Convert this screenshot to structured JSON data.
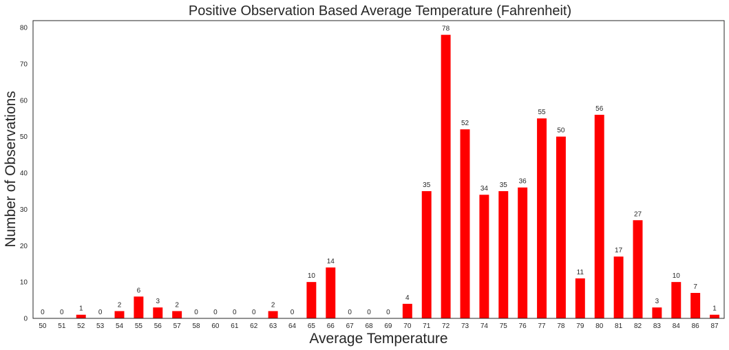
{
  "chart_data": {
    "type": "bar",
    "title": "Positive Observation Based Average Temperature (Fahrenheit)",
    "xlabel": "Average Temperature",
    "ylabel": "Number of Observations",
    "categories": [
      "50",
      "51",
      "52",
      "53",
      "54",
      "55",
      "56",
      "57",
      "58",
      "60",
      "61",
      "62",
      "63",
      "64",
      "65",
      "66",
      "67",
      "68",
      "69",
      "70",
      "71",
      "72",
      "73",
      "74",
      "75",
      "76",
      "77",
      "78",
      "79",
      "80",
      "81",
      "82",
      "83",
      "84",
      "86",
      "87"
    ],
    "values": [
      0,
      0,
      1,
      0,
      2,
      6,
      3,
      2,
      0,
      0,
      0,
      0,
      2,
      0,
      10,
      14,
      0,
      0,
      0,
      4,
      35,
      78,
      52,
      34,
      35,
      36,
      55,
      50,
      11,
      56,
      17,
      27,
      3,
      10,
      7,
      1
    ],
    "data_labels": [
      "0",
      "0",
      "1",
      "0",
      "2",
      "6",
      "3",
      "2",
      "0",
      "0",
      "0",
      "0",
      "2",
      "0",
      "10",
      "14",
      "0",
      "0",
      "0",
      "4",
      "35",
      "78",
      "52",
      "34",
      "35",
      "36",
      "55",
      "50",
      "11",
      "56",
      "17",
      "27",
      "3",
      "10",
      "7",
      "1"
    ],
    "yticks": [
      0,
      10,
      20,
      30,
      40,
      50,
      60,
      70,
      80
    ],
    "ylim": [
      0,
      81.9
    ],
    "grid": false,
    "bar_color": "#ff0000",
    "frame_color": "#262626"
  }
}
